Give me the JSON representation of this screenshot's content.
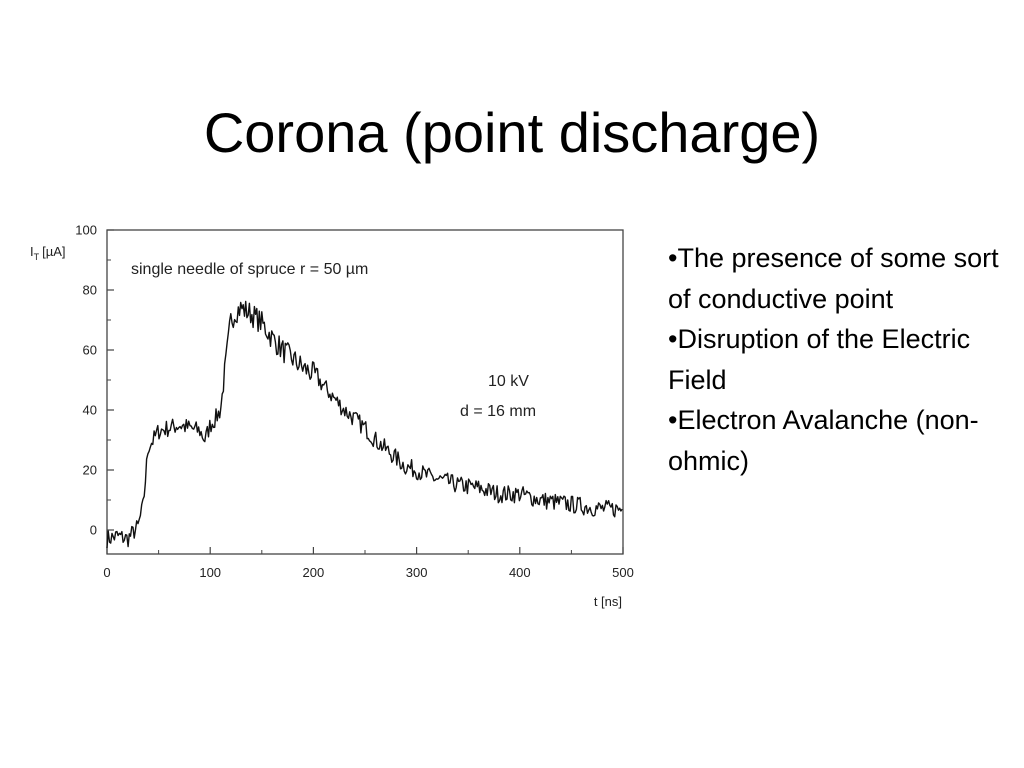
{
  "slide": {
    "title": "Corona (point discharge)",
    "bullets": [
      "•The presence of some sort of conductive point",
      "•Disruption of the Electric Field",
      "•Electron Avalanche (non-ohmic)"
    ]
  },
  "chart_data": {
    "type": "line",
    "ylabel_main": "I",
    "ylabel_sub": "T",
    "ylabel_unit": "[µA]",
    "xlabel": "t [ns]",
    "xlim": [
      0,
      500
    ],
    "ylim": [
      -8,
      100
    ],
    "xticks": [
      0,
      100,
      200,
      300,
      400,
      500
    ],
    "yticks": [
      0,
      20,
      40,
      60,
      80,
      100
    ],
    "grid": false,
    "annotations": [
      "single needle of spruce r = 50 µm",
      "10 kV",
      "d = 16 mm"
    ],
    "series": [
      {
        "color": "#111111",
        "x": [
          0,
          10,
          20,
          30,
          35,
          38,
          40,
          45,
          50,
          60,
          70,
          80,
          90,
          95,
          100,
          105,
          110,
          115,
          120,
          125,
          130,
          140,
          150,
          160,
          170,
          180,
          190,
          200,
          210,
          220,
          230,
          240,
          250,
          260,
          270,
          280,
          290,
          300,
          310,
          320,
          340,
          360,
          380,
          400,
          420,
          440,
          460,
          480,
          500
        ],
        "y": [
          -3,
          -2,
          -3,
          1,
          8,
          20,
          28,
          30,
          33,
          34,
          35,
          34,
          33,
          30,
          35,
          37,
          40,
          55,
          70,
          73,
          74,
          72,
          69,
          64,
          60,
          57,
          54,
          52,
          48,
          44,
          40,
          37,
          34,
          30,
          27,
          24,
          21,
          20,
          18,
          17,
          15,
          14,
          12,
          12,
          10,
          9,
          8,
          7,
          7
        ]
      }
    ]
  }
}
